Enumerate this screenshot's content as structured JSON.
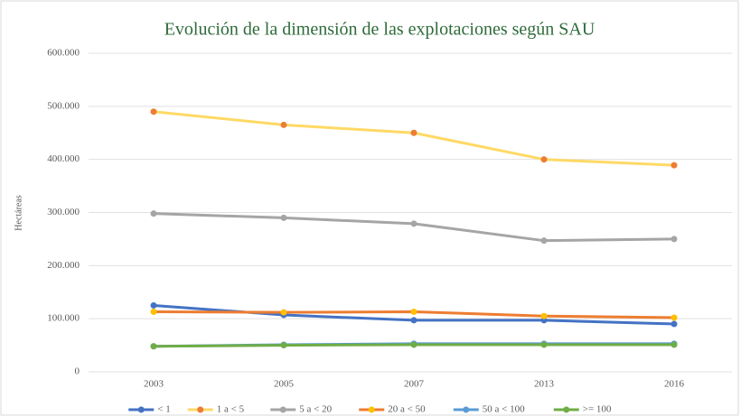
{
  "chart_data": {
    "type": "line",
    "title": "Evolución de la dimensión de las explotaciones según SAU",
    "y_label": "Hectáreas",
    "categories": [
      "2003",
      "2005",
      "2007",
      "2013",
      "2016"
    ],
    "series": [
      {
        "name": "< 1",
        "color": "#4472c4",
        "marker_color": "#4472c4",
        "values": [
          125000,
          107000,
          97000,
          97000,
          90000
        ]
      },
      {
        "name": "1 a < 5",
        "color": "#ffd966",
        "marker_color": "#ed7d31",
        "values": [
          490000,
          465000,
          450000,
          400000,
          389000
        ]
      },
      {
        "name": "5 a < 20",
        "color": "#a5a5a5",
        "marker_color": "#a5a5a5",
        "values": [
          298000,
          290000,
          279000,
          247000,
          250000
        ]
      },
      {
        "name": "20 a < 50",
        "color": "#ed7d31",
        "marker_color": "#ffc000",
        "values": [
          113000,
          112000,
          113000,
          105000,
          102000
        ]
      },
      {
        "name": "50 a < 100",
        "color": "#5b9bd5",
        "marker_color": "#5b9bd5",
        "values": [
          48000,
          51000,
          53000,
          53000,
          53000
        ]
      },
      {
        "name": ">= 100",
        "color": "#70ad47",
        "marker_color": "#70ad47",
        "values": [
          48000,
          50000,
          51000,
          51000,
          51000
        ]
      }
    ],
    "ylim": [
      0,
      600000
    ],
    "yticks": [
      0,
      {
        "value": 100000,
        "label": "100.000"
      },
      {
        "value": 200000,
        "label": "200.000"
      },
      {
        "value": 300000,
        "label": "300.000"
      },
      {
        "value": 400000,
        "label": "400.000"
      },
      {
        "value": 500000,
        "label": "500.000"
      },
      {
        "value": 600000,
        "label": "600.000"
      }
    ],
    "grid": true
  }
}
